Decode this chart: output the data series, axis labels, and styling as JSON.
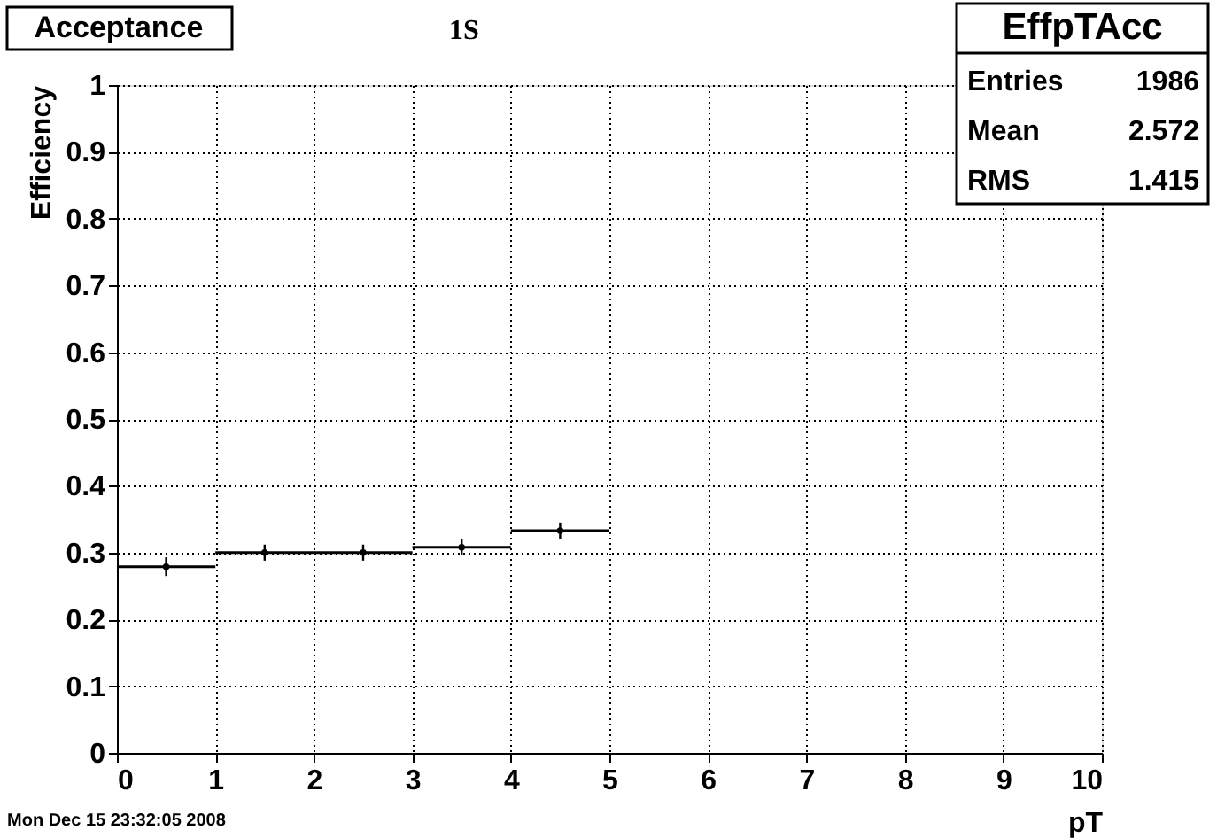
{
  "chart_data": {
    "type": "scatter",
    "marker": "circle",
    "title": "Acceptance",
    "xlabel": "pT",
    "ylabel": "Efficiency",
    "x": [
      0.5,
      1.5,
      2.5,
      3.5,
      4.5
    ],
    "xerrors": [
      0.5,
      0.5,
      0.5,
      0.5,
      0.5
    ],
    "values": [
      0.279,
      0.3,
      0.3,
      0.308,
      0.333
    ],
    "errors": [
      0.014,
      0.012,
      0.012,
      0.012,
      0.012
    ],
    "color": "#000000",
    "xlim": [
      0,
      10
    ],
    "xticks": [
      0,
      1,
      2,
      3,
      4,
      5,
      6,
      7,
      8,
      9,
      10
    ],
    "ylim": [
      0,
      1
    ],
    "yticks": [
      0,
      0.1,
      0.2,
      0.3,
      0.4,
      0.5,
      0.6,
      0.7,
      0.8,
      0.9,
      1
    ],
    "grid": true,
    "annotations": [
      "1S",
      "EffpTAcc",
      "Entries",
      "1986",
      "Mean",
      "2.572",
      "RMS",
      "1.415",
      "Mon Dec 15 23:32:05 2008"
    ]
  }
}
